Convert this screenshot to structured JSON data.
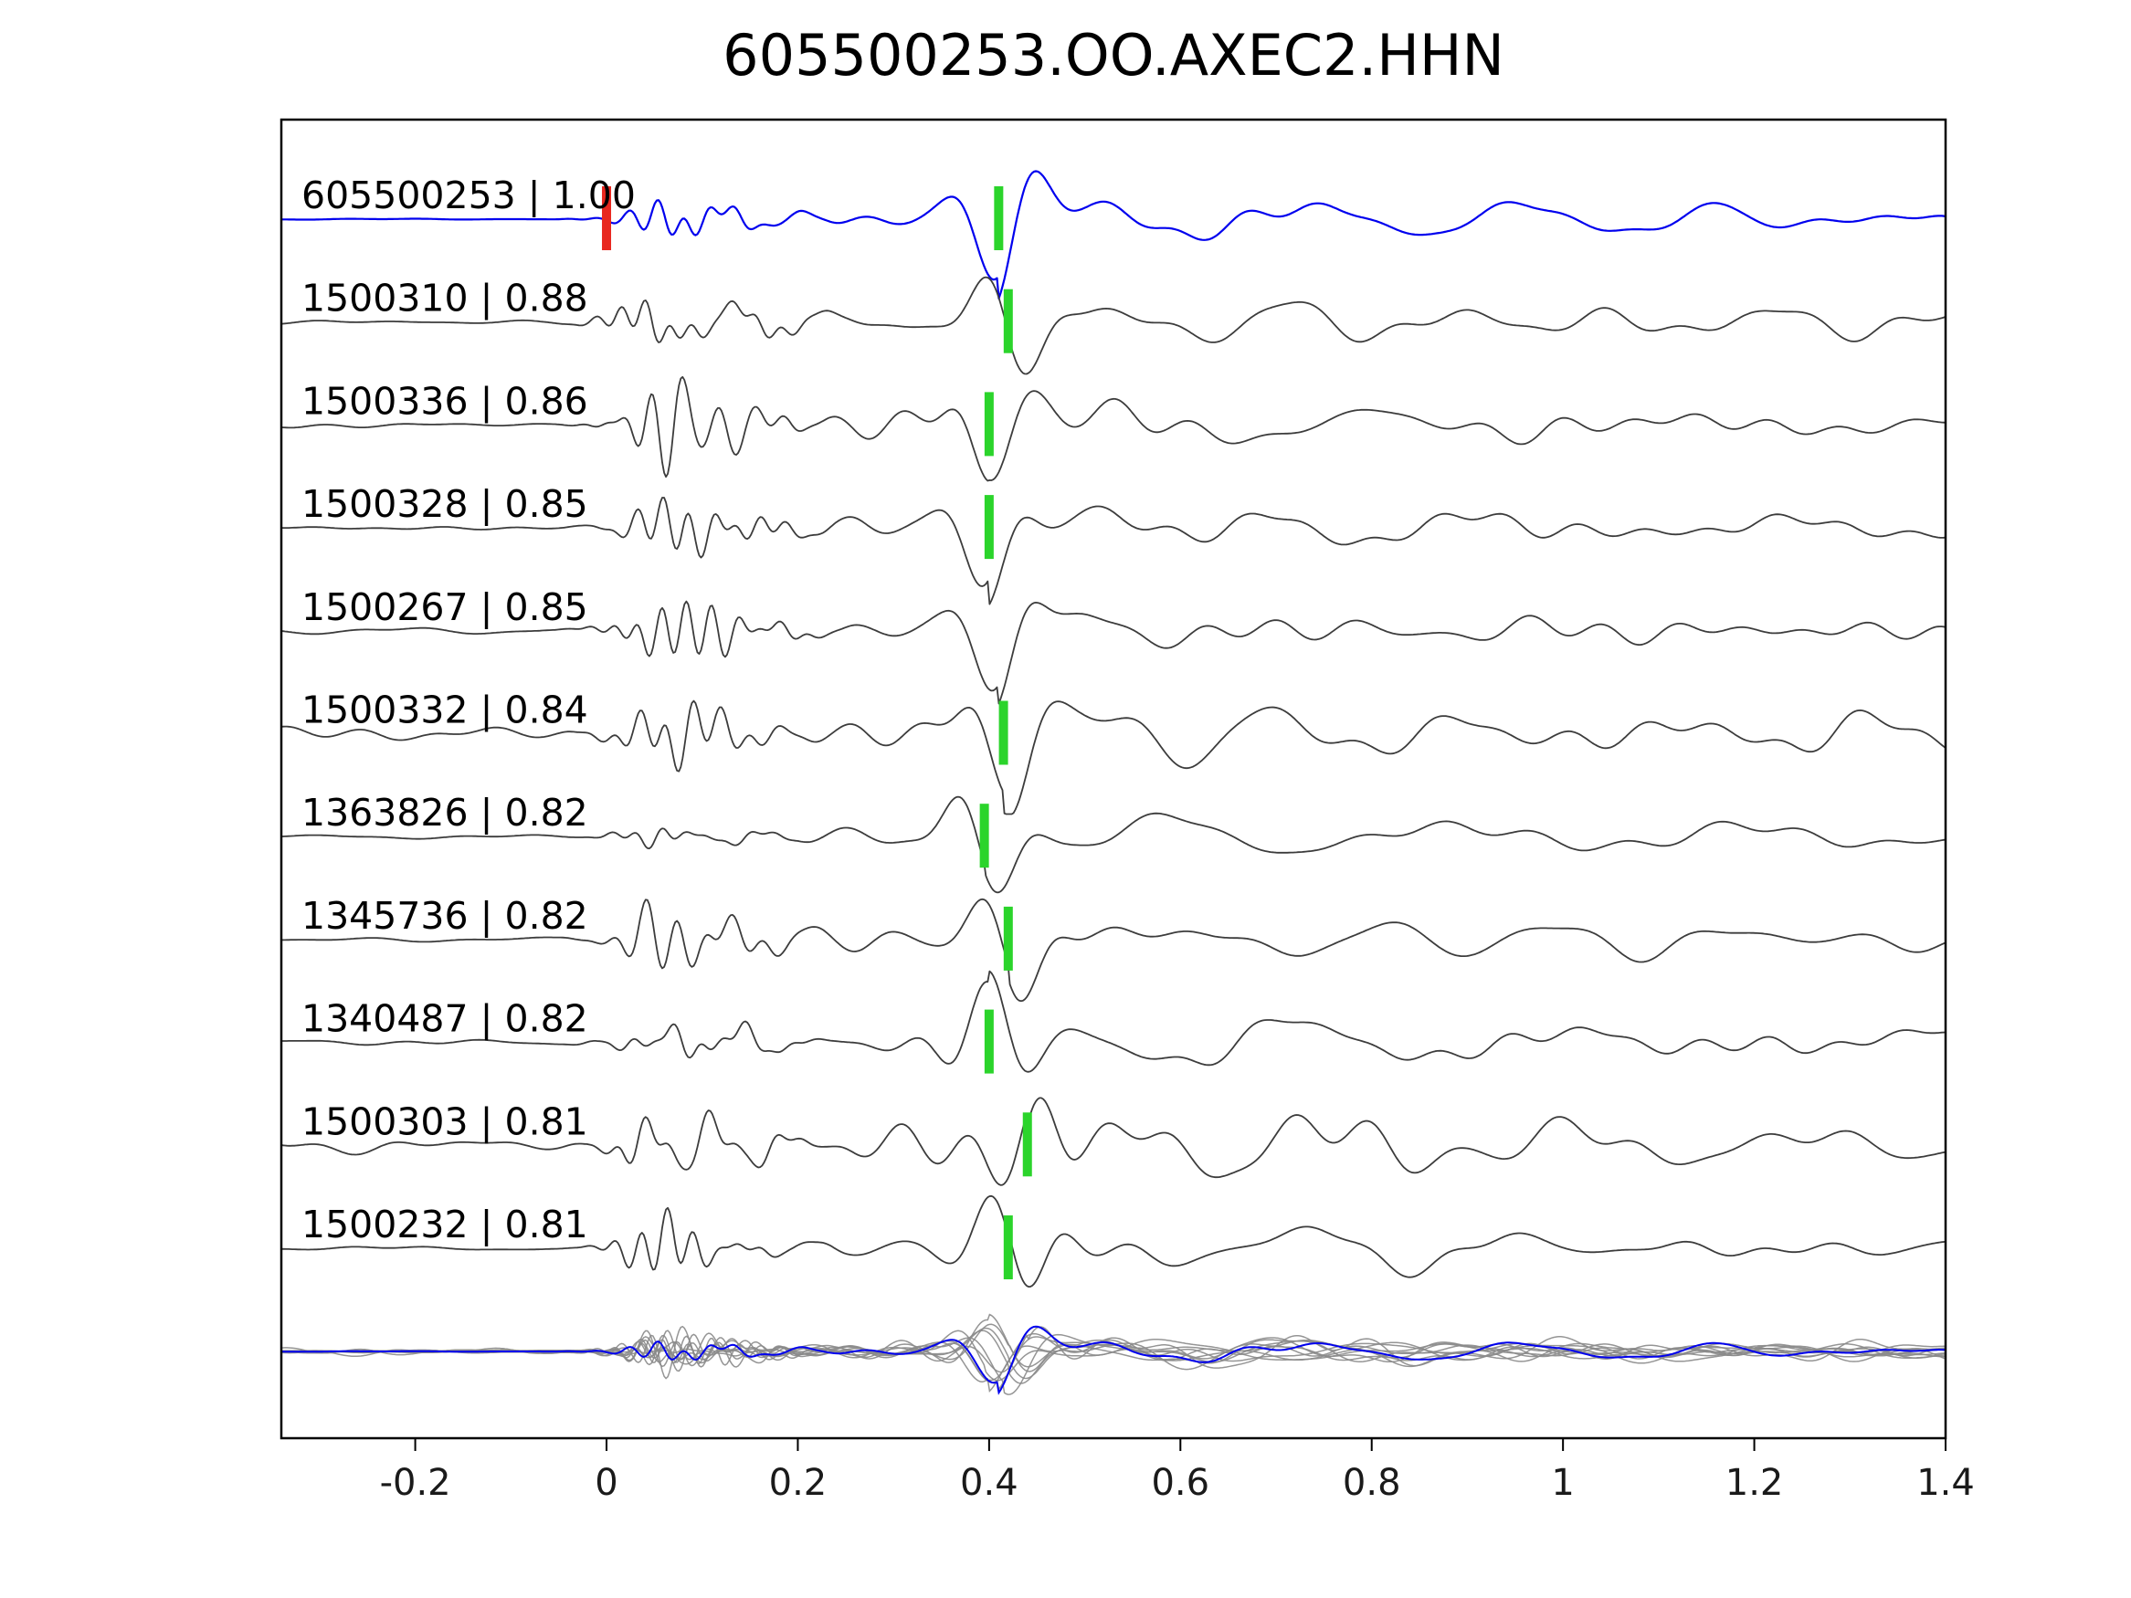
{
  "title": "605500253.OO.AXEC2.HHN",
  "chart_data": {
    "type": "line",
    "title": "605500253.OO.AXEC2.HHN",
    "xlabel": "",
    "ylabel": "",
    "xlim": [
      -0.34,
      1.4
    ],
    "xticks": [
      -0.2,
      0,
      0.2,
      0.4,
      0.6,
      0.8,
      1,
      1.2,
      1.4
    ],
    "xtick_labels": [
      "-0.2",
      "0",
      "0.2",
      "0.4",
      "0.6",
      "0.8",
      "1",
      "1.2",
      "1.4"
    ],
    "grid": false,
    "legend": "none",
    "description": "Stacked seismic waveform traces aligned on origin time. Top blue trace is the reference event with a red pick at t=0 and a green correlation pick near t=0.41. Gray traces are matched events, each with a green pick near t=0.4. Bottom row overlays all gray traces with the blue reference trace.",
    "colors": {
      "reference_trace": "#0000ee",
      "member_trace": "#3c3c3c",
      "overlay_trace": "#8a8a8a",
      "reference_pick": "#e8271f",
      "correlation_pick": "#2bd42b",
      "axis": "#000000",
      "background": "#ffffff"
    },
    "traces": [
      {
        "id": "605500253",
        "correlation": "1.00",
        "label": "605500253 | 1.00",
        "color_role": "reference",
        "red_pick": 0.0,
        "green_pick": 0.41
      },
      {
        "id": "1500310",
        "correlation": "0.88",
        "label": "1500310 | 0.88",
        "color_role": "member",
        "red_pick": null,
        "green_pick": 0.42
      },
      {
        "id": "1500336",
        "correlation": "0.86",
        "label": "1500336 | 0.86",
        "color_role": "member",
        "red_pick": null,
        "green_pick": 0.4
      },
      {
        "id": "1500328",
        "correlation": "0.85",
        "label": "1500328 | 0.85",
        "color_role": "member",
        "red_pick": null,
        "green_pick": 0.4
      },
      {
        "id": "1500267",
        "correlation": "0.85",
        "label": "1500267 | 0.85",
        "color_role": "member",
        "red_pick": null,
        "green_pick": null
      },
      {
        "id": "1500332",
        "correlation": "0.84",
        "label": "1500332 | 0.84",
        "color_role": "member",
        "red_pick": null,
        "green_pick": 0.415
      },
      {
        "id": "1363826",
        "correlation": "0.82",
        "label": "1363826 | 0.82",
        "color_role": "member",
        "red_pick": null,
        "green_pick": 0.395
      },
      {
        "id": "1345736",
        "correlation": "0.82",
        "label": "1345736 | 0.82",
        "color_role": "member",
        "red_pick": null,
        "green_pick": 0.42
      },
      {
        "id": "1340487",
        "correlation": "0.82",
        "label": "1340487 | 0.82",
        "color_role": "member",
        "red_pick": null,
        "green_pick": 0.4
      },
      {
        "id": "1500303",
        "correlation": "0.81",
        "label": "1500303 | 0.81",
        "color_role": "member",
        "red_pick": null,
        "green_pick": 0.44
      },
      {
        "id": "1500232",
        "correlation": "0.81",
        "label": "1500232 | 0.81",
        "color_role": "member",
        "red_pick": null,
        "green_pick": 0.42
      }
    ],
    "overlay_row": {
      "content": "all member traces in gray overlaid with reference trace in blue",
      "has_picks": false
    },
    "render_hints": {
      "traces": [
        {
          "pre_noise": 0.012,
          "burst": 0.45,
          "mid": 0.6
        },
        {
          "pre_noise": 0.05,
          "burst": 1.0,
          "mid": 1.0
        },
        {
          "pre_noise": 0.05,
          "burst": 0.9,
          "mid": 1.0
        },
        {
          "pre_noise": 0.06,
          "burst": 0.9,
          "mid": 1.0
        },
        {
          "pre_noise": 0.07,
          "burst": 0.85,
          "mid": 1.0
        },
        {
          "pre_noise": 0.17,
          "burst": 0.95,
          "mid": 1.1
        },
        {
          "pre_noise": 0.04,
          "burst": 0.3,
          "mid": 0.5
        },
        {
          "pre_noise": 0.06,
          "burst": 0.9,
          "mid": 1.0
        },
        {
          "pre_noise": 0.08,
          "burst": 0.8,
          "mid": 1.0
        },
        {
          "pre_noise": 0.16,
          "burst": 1.0,
          "mid": 1.1
        },
        {
          "pre_noise": 0.05,
          "burst": 0.85,
          "mid": 0.9
        }
      ],
      "default_green_pick_for_waveshape": 0.41
    }
  }
}
